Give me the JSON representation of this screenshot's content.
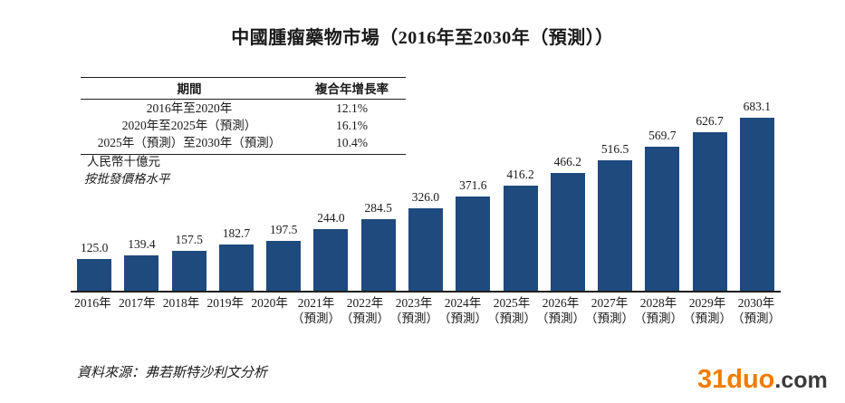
{
  "title": "中國腫瘤藥物市場（2016年至2030年（預測））",
  "cagr_table": {
    "headers": [
      "期間",
      "複合年增長率"
    ],
    "rows": [
      {
        "period": "2016年至2020年",
        "cagr": "12.1%"
      },
      {
        "period": "2020年至2025年（預測）",
        "cagr": "16.1%"
      },
      {
        "period": "2025年（預測）至2030年（預測）",
        "cagr": "10.4%"
      }
    ]
  },
  "unit_note": "人民幣十億元",
  "price_note": "按批發價格水平",
  "source": "資料來源：弗若斯特沙利文分析",
  "watermark": {
    "brand": "31duo",
    "suffix": ".com",
    "brand_color": "#F07C00",
    "suffix_color": "#3B3B3B"
  },
  "colors": {
    "bar": "#1E4A7D",
    "axis": "#1F1F1F"
  },
  "chart_data": {
    "type": "bar",
    "title": "中國腫瘤藥物市場（2016年至2030年（預測））",
    "ylabel": "人民幣十億元",
    "note": "按批發價格水平",
    "categories": [
      "2016年",
      "2017年",
      "2018年",
      "2019年",
      "2020年",
      "2021年",
      "2022年",
      "2023年",
      "2024年",
      "2025年",
      "2026年",
      "2027年",
      "2028年",
      "2029年",
      "2030年"
    ],
    "forecast_label": "（預測）",
    "forecast_from_index": 5,
    "values": [
      125.0,
      139.4,
      157.5,
      182.7,
      197.5,
      244.0,
      284.5,
      326.0,
      371.6,
      416.2,
      466.2,
      516.5,
      569.7,
      626.7,
      683.1
    ],
    "ylim": [
      0,
      683.1
    ],
    "grid": false,
    "legend": false,
    "data_labels": true
  }
}
